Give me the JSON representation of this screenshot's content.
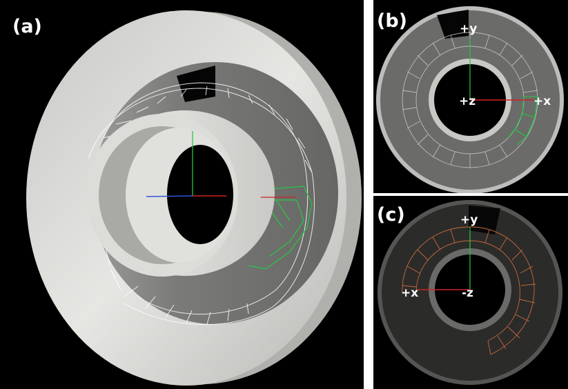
{
  "panels": {
    "a": {
      "label": "(a)"
    },
    "b": {
      "label": "(b)",
      "axes": {
        "y": "+y",
        "z": "+z",
        "x": "+x"
      }
    },
    "c": {
      "label": "(c)",
      "axes": {
        "y": "+y",
        "x": "+x",
        "z": "-z"
      }
    }
  },
  "colors": {
    "background": "#000000",
    "tube_light": "#d9d9d6",
    "cone_gray": "#8c8c8a",
    "wire_white": "#ffffff",
    "wire_green": "#22cc44",
    "wire_orange": "#c86a3c",
    "axis_x": "#cc2222",
    "axis_y": "#22cc44",
    "axis_z": "#3355dd"
  }
}
